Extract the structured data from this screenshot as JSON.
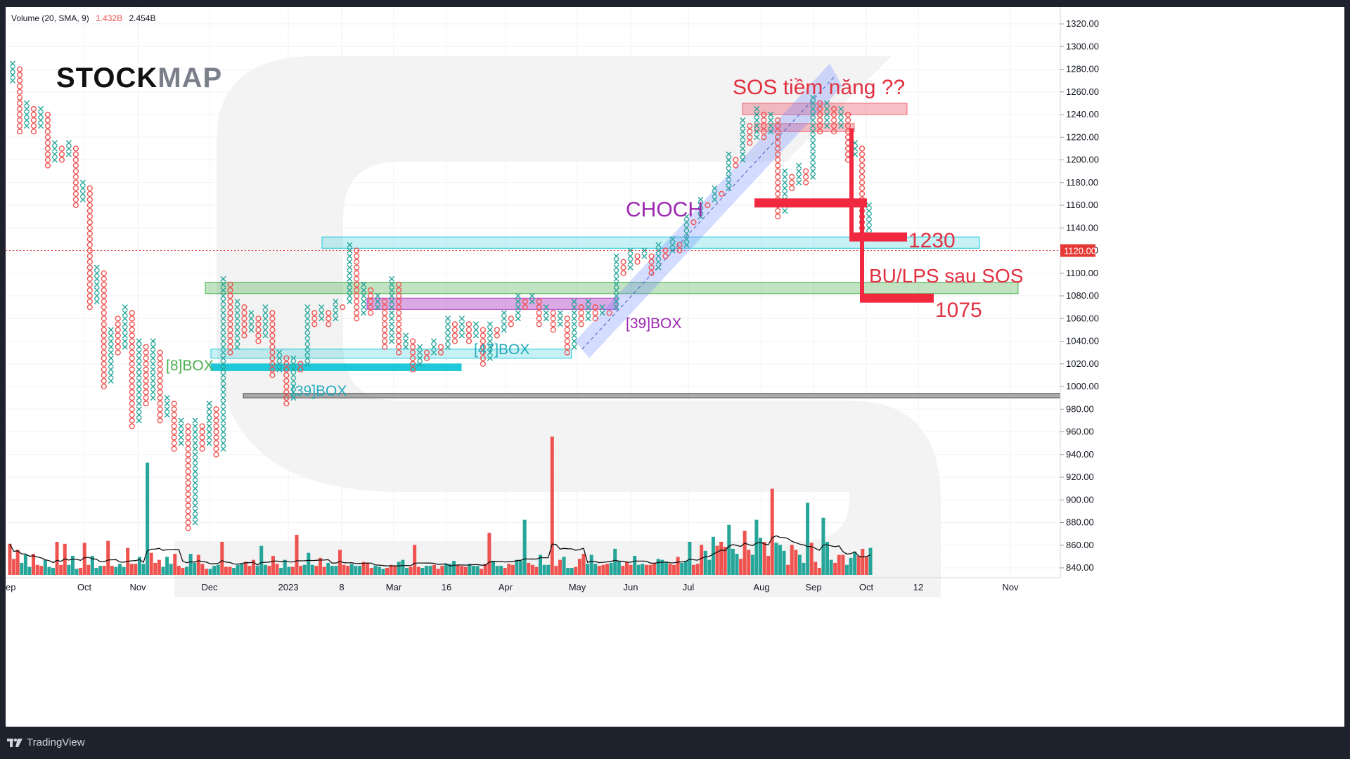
{
  "legend": {
    "indicator": "Volume (20, SMA, 9)",
    "value1": "1.432B",
    "value2": "2.454B"
  },
  "brand": {
    "stock": "STOCK",
    "map": "MAP"
  },
  "footer": {
    "platform": "TradingView"
  },
  "colors": {
    "x_mark": "#26a69a",
    "o_mark": "#ef5350",
    "price_label_bg": "#e53935",
    "box_cyan": "#1ec8d8",
    "box_green": "#4caf50",
    "box_purple": "#b040c0",
    "box_red": "#f06070",
    "line_red": "#f02840",
    "channel_blue": "#6680ff",
    "ann_red": "#e03040",
    "ann_purple": "#9c27b0",
    "ann_cyan": "#22aabb",
    "ann_green": "#4caf50"
  },
  "chart_data": {
    "type": "point-and-figure",
    "y_axis": {
      "ticks": [
        "1320.00",
        "1300.00",
        "1280.00",
        "1260.00",
        "1240.00",
        "1220.00",
        "1200.00",
        "1180.00",
        "1160.00",
        "1140.00",
        "1120.00",
        "1100.00",
        "1080.00",
        "1060.00",
        "1040.00",
        "1020.00",
        "1000.00",
        "980.00",
        "960.00",
        "940.00",
        "920.00",
        "900.00",
        "880.00",
        "860.00",
        "840.00"
      ],
      "ylim": [
        832,
        1328
      ],
      "current_price_label": "1120.00",
      "current_price": 1120
    },
    "x_axis": {
      "tick_labels": [
        "ep",
        "Oct",
        "Nov",
        "Dec",
        "2023",
        "8",
        "Mar",
        "16",
        "Apr",
        "May",
        "Jun",
        "Jul",
        "Aug",
        "Sep",
        "Oct",
        "12",
        "Nov"
      ]
    },
    "columns": [
      {
        "type": "X",
        "low": 1270,
        "high": 1285
      },
      {
        "type": "O",
        "low": 1225,
        "high": 1280
      },
      {
        "type": "X",
        "low": 1230,
        "high": 1250
      },
      {
        "type": "O",
        "low": 1225,
        "high": 1245
      },
      {
        "type": "X",
        "low": 1230,
        "high": 1245
      },
      {
        "type": "O",
        "low": 1195,
        "high": 1240
      },
      {
        "type": "X",
        "low": 1200,
        "high": 1215
      },
      {
        "type": "O",
        "low": 1200,
        "high": 1210
      },
      {
        "type": "X",
        "low": 1205,
        "high": 1215
      },
      {
        "type": "O",
        "low": 1160,
        "high": 1210
      },
      {
        "type": "X",
        "low": 1165,
        "high": 1180
      },
      {
        "type": "O",
        "low": 1070,
        "high": 1175
      },
      {
        "type": "X",
        "low": 1075,
        "high": 1105
      },
      {
        "type": "O",
        "low": 1000,
        "high": 1100
      },
      {
        "type": "X",
        "low": 1005,
        "high": 1050
      },
      {
        "type": "O",
        "low": 1030,
        "high": 1060
      },
      {
        "type": "X",
        "low": 1035,
        "high": 1070
      },
      {
        "type": "O",
        "low": 965,
        "high": 1065
      },
      {
        "type": "X",
        "low": 970,
        "high": 1040
      },
      {
        "type": "O",
        "low": 985,
        "high": 1035
      },
      {
        "type": "X",
        "low": 990,
        "high": 1040
      },
      {
        "type": "O",
        "low": 970,
        "high": 1030
      },
      {
        "type": "X",
        "low": 975,
        "high": 990
      },
      {
        "type": "O",
        "low": 945,
        "high": 985
      },
      {
        "type": "X",
        "low": 950,
        "high": 970
      },
      {
        "type": "O",
        "low": 875,
        "high": 965
      },
      {
        "type": "X",
        "low": 880,
        "high": 970
      },
      {
        "type": "O",
        "low": 945,
        "high": 965
      },
      {
        "type": "X",
        "low": 950,
        "high": 985
      },
      {
        "type": "O",
        "low": 940,
        "high": 980
      },
      {
        "type": "X",
        "low": 945,
        "high": 1095
      },
      {
        "type": "O",
        "low": 1030,
        "high": 1090
      },
      {
        "type": "X",
        "low": 1035,
        "high": 1075
      },
      {
        "type": "O",
        "low": 1045,
        "high": 1070
      },
      {
        "type": "X",
        "low": 1050,
        "high": 1065
      },
      {
        "type": "O",
        "low": 1040,
        "high": 1060
      },
      {
        "type": "X",
        "low": 1045,
        "high": 1070
      },
      {
        "type": "O",
        "low": 1010,
        "high": 1065
      },
      {
        "type": "X",
        "low": 1015,
        "high": 1030
      },
      {
        "type": "O",
        "low": 985,
        "high": 1025
      },
      {
        "type": "X",
        "low": 990,
        "high": 1025
      },
      {
        "type": "O",
        "low": 1015,
        "high": 1020
      },
      {
        "type": "X",
        "low": 1020,
        "high": 1070
      },
      {
        "type": "O",
        "low": 1055,
        "high": 1065
      },
      {
        "type": "X",
        "low": 1060,
        "high": 1070
      },
      {
        "type": "O",
        "low": 1055,
        "high": 1065
      },
      {
        "type": "X",
        "low": 1060,
        "high": 1075
      },
      {
        "type": "O",
        "low": 1070,
        "high": 1070
      },
      {
        "type": "X",
        "low": 1075,
        "high": 1125
      },
      {
        "type": "O",
        "low": 1060,
        "high": 1120
      },
      {
        "type": "X",
        "low": 1065,
        "high": 1090
      },
      {
        "type": "O",
        "low": 1065,
        "high": 1085
      },
      {
        "type": "X",
        "low": 1070,
        "high": 1080
      },
      {
        "type": "O",
        "low": 1035,
        "high": 1075
      },
      {
        "type": "X",
        "low": 1040,
        "high": 1095
      },
      {
        "type": "O",
        "low": 1030,
        "high": 1090
      },
      {
        "type": "X",
        "low": 1035,
        "high": 1045
      },
      {
        "type": "O",
        "low": 1015,
        "high": 1040
      },
      {
        "type": "X",
        "low": 1020,
        "high": 1035
      },
      {
        "type": "O",
        "low": 1025,
        "high": 1030
      },
      {
        "type": "X",
        "low": 1030,
        "high": 1040
      },
      {
        "type": "O",
        "low": 1030,
        "high": 1035
      },
      {
        "type": "X",
        "low": 1035,
        "high": 1060
      },
      {
        "type": "O",
        "low": 1040,
        "high": 1055
      },
      {
        "type": "X",
        "low": 1045,
        "high": 1060
      },
      {
        "type": "O",
        "low": 1040,
        "high": 1055
      },
      {
        "type": "X",
        "low": 1045,
        "high": 1055
      },
      {
        "type": "O",
        "low": 1020,
        "high": 1050
      },
      {
        "type": "X",
        "low": 1025,
        "high": 1055
      },
      {
        "type": "O",
        "low": 1045,
        "high": 1050
      },
      {
        "type": "X",
        "low": 1050,
        "high": 1065
      },
      {
        "type": "O",
        "low": 1055,
        "high": 1060
      },
      {
        "type": "X",
        "low": 1060,
        "high": 1080
      },
      {
        "type": "O",
        "low": 1070,
        "high": 1075
      },
      {
        "type": "X",
        "low": 1075,
        "high": 1080
      },
      {
        "type": "O",
        "low": 1055,
        "high": 1075
      },
      {
        "type": "X",
        "low": 1060,
        "high": 1070
      },
      {
        "type": "O",
        "low": 1050,
        "high": 1065
      },
      {
        "type": "X",
        "low": 1055,
        "high": 1065
      },
      {
        "type": "O",
        "low": 1030,
        "high": 1060
      },
      {
        "type": "X",
        "low": 1035,
        "high": 1075
      },
      {
        "type": "O",
        "low": 1055,
        "high": 1070
      },
      {
        "type": "X",
        "low": 1060,
        "high": 1075
      },
      {
        "type": "O",
        "low": 1060,
        "high": 1070
      },
      {
        "type": "X",
        "low": 1065,
        "high": 1070
      },
      {
        "type": "O",
        "low": 1065,
        "high": 1065
      },
      {
        "type": "X",
        "low": 1070,
        "high": 1115
      },
      {
        "type": "O",
        "low": 1100,
        "high": 1110
      },
      {
        "type": "X",
        "low": 1105,
        "high": 1120
      },
      {
        "type": "O",
        "low": 1110,
        "high": 1115
      },
      {
        "type": "X",
        "low": 1115,
        "high": 1120
      },
      {
        "type": "O",
        "low": 1100,
        "high": 1115
      },
      {
        "type": "X",
        "low": 1105,
        "high": 1125
      },
      {
        "type": "O",
        "low": 1115,
        "high": 1120
      },
      {
        "type": "X",
        "low": 1120,
        "high": 1130
      },
      {
        "type": "O",
        "low": 1120,
        "high": 1125
      },
      {
        "type": "X",
        "low": 1125,
        "high": 1150
      },
      {
        "type": "O",
        "low": 1145,
        "high": 1145
      },
      {
        "type": "X",
        "low": 1150,
        "high": 1165
      },
      {
        "type": "O",
        "low": 1160,
        "high": 1160
      },
      {
        "type": "X",
        "low": 1165,
        "high": 1175
      },
      {
        "type": "O",
        "low": 1170,
        "high": 1170
      },
      {
        "type": "X",
        "low": 1175,
        "high": 1205
      },
      {
        "type": "O",
        "low": 1195,
        "high": 1200
      },
      {
        "type": "X",
        "low": 1200,
        "high": 1235
      },
      {
        "type": "O",
        "low": 1215,
        "high": 1230
      },
      {
        "type": "X",
        "low": 1220,
        "high": 1245
      },
      {
        "type": "O",
        "low": 1220,
        "high": 1240
      },
      {
        "type": "X",
        "low": 1225,
        "high": 1240
      },
      {
        "type": "O",
        "low": 1150,
        "high": 1235
      },
      {
        "type": "X",
        "low": 1155,
        "high": 1190
      },
      {
        "type": "O",
        "low": 1175,
        "high": 1185
      },
      {
        "type": "X",
        "low": 1180,
        "high": 1195
      },
      {
        "type": "O",
        "low": 1180,
        "high": 1190
      },
      {
        "type": "X",
        "low": 1185,
        "high": 1255
      },
      {
        "type": "O",
        "low": 1225,
        "high": 1250
      },
      {
        "type": "X",
        "low": 1230,
        "high": 1250
      },
      {
        "type": "O",
        "low": 1225,
        "high": 1245
      },
      {
        "type": "X",
        "low": 1230,
        "high": 1245
      },
      {
        "type": "O",
        "low": 1200,
        "high": 1240
      },
      {
        "type": "X",
        "low": 1205,
        "high": 1215
      },
      {
        "type": "O",
        "low": 1130,
        "high": 1210
      },
      {
        "type": "X",
        "low": 1135,
        "high": 1160
      }
    ],
    "volume": {
      "values": [
        1.55,
        0.8,
        1.25,
        0.6,
        1.0,
        0.4,
        1.05,
        0.5,
        0.45,
        0.75,
        0.4,
        0.35,
        1.65,
        0.5,
        1.55,
        0.5,
        0.95,
        0.3,
        0.35,
        1.6,
        0.5,
        0.95,
        0.35,
        0.45,
        0.45,
        1.7,
        0.45,
        0.4,
        0.55,
        0.4,
        1.35,
        0.55,
        0.55,
        0.9,
        0.55,
        5.6,
        1.1,
        0.6,
        0.75,
        0.4,
        0.9,
        0.55,
        1.05,
        0.45,
        0.35,
        0.4,
        1.05,
        0.6,
        1.0,
        0.55,
        0.3,
        0.3,
        0.45,
        0.5,
        1.65,
        0.4,
        0.4,
        0.35,
        0.5,
        0.55,
        0.65,
        0.45,
        0.75,
        0.45,
        1.45,
        0.5,
        0.45,
        0.95,
        0.55,
        0.35,
        0.75,
        0.4,
        0.4,
        2.0,
        0.45,
        0.5,
        1.1,
        0.5,
        0.45,
        0.85,
        0.4,
        0.6,
        0.45,
        0.45,
        1.25,
        0.5,
        0.45,
        0.55,
        0.45,
        0.45,
        0.65,
        0.6,
        0.35,
        0.45,
        0.4,
        0.3,
        0.35,
        0.5,
        0.45,
        0.65,
        0.75,
        0.35,
        0.4,
        1.5,
        0.4,
        0.35,
        0.45,
        0.45,
        0.5,
        0.3,
        0.45,
        0.55,
        0.55,
        0.7,
        0.5,
        0.45,
        0.4,
        0.55,
        0.45,
        0.45,
        0.3,
        0.55,
        2.1,
        0.7,
        0.45,
        0.45,
        0.35,
        0.55,
        0.5,
        0.75,
        0.7,
        2.75,
        0.6,
        0.5,
        0.4,
        1.0,
        0.5,
        0.5,
        6.9,
        0.45,
        0.75,
        0.9,
        0.35,
        0.35,
        0.4,
        0.8,
        1.05,
        0.55,
        1.0,
        0.55,
        0.45,
        0.5,
        0.55,
        0.6,
        1.3,
        0.7,
        0.45,
        0.65,
        0.5,
        0.95,
        0.5,
        0.55,
        0.5,
        0.5,
        0.6,
        0.8,
        0.75,
        0.65,
        0.55,
        0.5,
        0.9,
        0.6,
        0.7,
        1.65,
        0.5,
        0.55,
        1.5,
        1.2,
        0.75,
        1.9,
        1.45,
        1.65,
        1.4,
        2.5,
        1.3,
        1.05,
        0.8,
        2.2,
        1.25,
        1.0,
        2.75,
        1.85,
        1.65,
        0.95,
        4.3,
        1.6,
        1.5,
        1.2,
        0.5,
        1.5,
        1.25,
        1.0,
        0.6,
        3.6,
        1.6,
        0.65,
        0.35,
        2.85,
        1.65,
        0.75,
        0.6,
        1.0,
        1.0,
        0.5,
        0.85,
        1.15,
        0.95,
        1.3,
        0.9,
        1.35
      ],
      "ma_note": "SMA 9"
    },
    "annotations": {
      "boxes": [
        {
          "label": "[8]BOX",
          "low": 1025,
          "high": 1030
        },
        {
          "label": "[39]BOX",
          "low": 1015,
          "high": 1020
        },
        {
          "label": "[47]BOX",
          "low": 1025,
          "high": 1030
        },
        {
          "label": "[39]BOX",
          "low": 1065,
          "high": 1070
        }
      ],
      "choch_label": "CHOCH",
      "sos_label": "SOS tiềm năng ??",
      "bu_label": "BU/LPS sau SOS",
      "target_1230": "1230",
      "target_1075": "1075"
    }
  }
}
